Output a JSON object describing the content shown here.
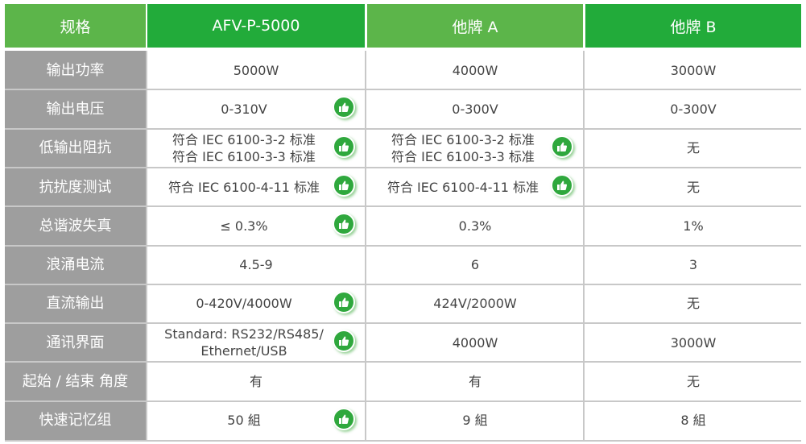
{
  "colors": {
    "header_dark": "#22ab3a",
    "header_light": "#5cb54a",
    "label_bg": "#9e9e9e",
    "thumb": "#2fa83d"
  },
  "header": [
    "规格",
    "AFV-P-5000",
    "他牌 A",
    "他牌 B"
  ],
  "rows": [
    {
      "label": "输出功率",
      "values": [
        "5000W",
        "4000W",
        "3000W"
      ],
      "thumbs": [
        false,
        false,
        false
      ]
    },
    {
      "label": "输出电压",
      "values": [
        "0-310V",
        "0-300V",
        "0-300V"
      ],
      "thumbs": [
        true,
        false,
        false
      ]
    },
    {
      "label": "低输出阻抗",
      "values": [
        "符合 IEC 6100-3-2 标准\n符合 IEC 6100-3-3 标准",
        "符合 IEC 6100-3-2 标准\n符合 IEC 6100-3-3 标准",
        "无"
      ],
      "thumbs": [
        true,
        true,
        false
      ]
    },
    {
      "label": "抗扰度测试",
      "values": [
        "符合 IEC 6100-4-11 标准",
        "符合 IEC 6100-4-11 标准",
        "无"
      ],
      "thumbs": [
        true,
        true,
        false
      ]
    },
    {
      "label": "总谐波失真",
      "values": [
        "≤ 0.3%",
        "0.3%",
        "1%"
      ],
      "thumbs": [
        true,
        false,
        false
      ]
    },
    {
      "label": "浪涌电流",
      "values": [
        "4.5-9",
        "6",
        "3"
      ],
      "thumbs": [
        false,
        false,
        false
      ]
    },
    {
      "label": "直流输出",
      "values": [
        "0-420V/4000W",
        "424V/2000W",
        "无"
      ],
      "thumbs": [
        true,
        false,
        false
      ]
    },
    {
      "label": "通讯界面",
      "values": [
        "Standard: RS232/RS485/\nEthernet/USB",
        "4000W",
        "3000W"
      ],
      "thumbs": [
        true,
        false,
        false
      ]
    },
    {
      "label": "起始 / 结束 角度",
      "values": [
        "有",
        "有",
        "无"
      ],
      "thumbs": [
        false,
        false,
        false
      ]
    },
    {
      "label": "快速记忆组",
      "values": [
        "50 組",
        "9 組",
        "8 組"
      ],
      "thumbs": [
        true,
        false,
        false
      ]
    }
  ],
  "icons": {
    "thumb": "thumbs-up-icon"
  }
}
